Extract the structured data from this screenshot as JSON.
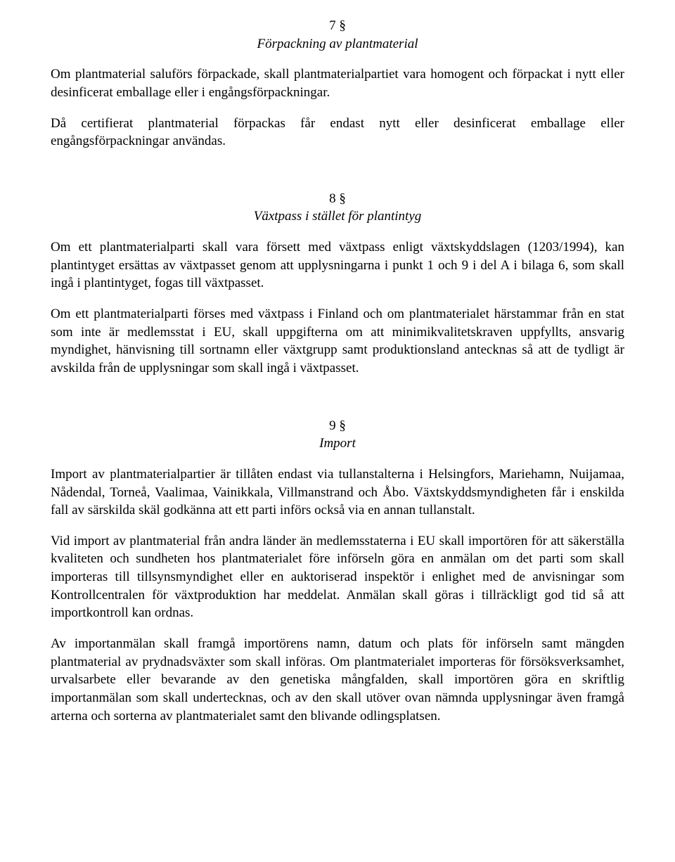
{
  "section7": {
    "number": "7 §",
    "heading": "Förpackning av plantmaterial",
    "para1": "Om plantmaterial saluförs förpackade, skall plantmaterialpartiet vara homogent och förpackat i nytt eller desinficerat emballage eller i engångsförpackningar.",
    "para2": "Då certifierat plantmaterial förpackas får endast nytt eller desinficerat emballage eller engångsförpackningar användas."
  },
  "section8": {
    "number": "8 §",
    "heading": "Växtpass i stället för plantintyg",
    "para1": "Om ett plantmaterialparti skall vara försett med växtpass enligt växtskyddslagen (1203/1994), kan plantintyget ersättas av växtpasset genom att upplysningarna i punkt 1 och 9 i del A i bilaga 6, som skall ingå i plantintyget, fogas till växtpasset.",
    "para2": "Om ett plantmaterialparti förses med växtpass i Finland och om plantmaterialet härstammar från en stat som inte är medlemsstat i EU, skall uppgifterna om att minimikvalitetskraven uppfyllts, ansvarig myndighet, hänvisning till sortnamn eller växtgrupp samt produktionsland antecknas så att de tydligt är avskilda från de upplysningar som skall ingå i växtpasset."
  },
  "section9": {
    "number": "9 §",
    "heading": "Import",
    "para1": "Import av plantmaterialpartier är tillåten endast via tullanstalterna i Helsingfors, Mariehamn, Nuijamaa, Nådendal, Torneå, Vaalimaa, Vainikkala, Villmanstrand och Åbo. Växtskyddsmyndigheten får i enskilda fall av särskilda skäl godkänna att ett parti införs också via en annan tullanstalt.",
    "para2": "Vid import av plantmaterial från andra länder än medlemsstaterna i EU skall importören för att säkerställa kvaliteten och sundheten hos plantmaterialet före införseln göra en anmälan om det parti som skall importeras till tillsynsmyndighet eller en auktoriserad inspektör i enlighet med de anvisningar som Kontrollcentralen för växtproduktion har meddelat. Anmälan skall göras i tillräckligt god tid så att importkontroll kan ordnas.",
    "para3": "Av importanmälan skall framgå importörens namn, datum och plats för införseln samt mängden plantmaterial av prydnadsväxter som skall införas. Om plantmaterialet importeras för försöksverksamhet, urvalsarbete eller bevarande av den genetiska mångfalden, skall importören göra en skriftlig importanmälan som skall undertecknas, och av den skall utöver ovan nämnda upplysningar även framgå arterna och sorterna av plantmaterialet samt den blivande odlingsplatsen."
  }
}
